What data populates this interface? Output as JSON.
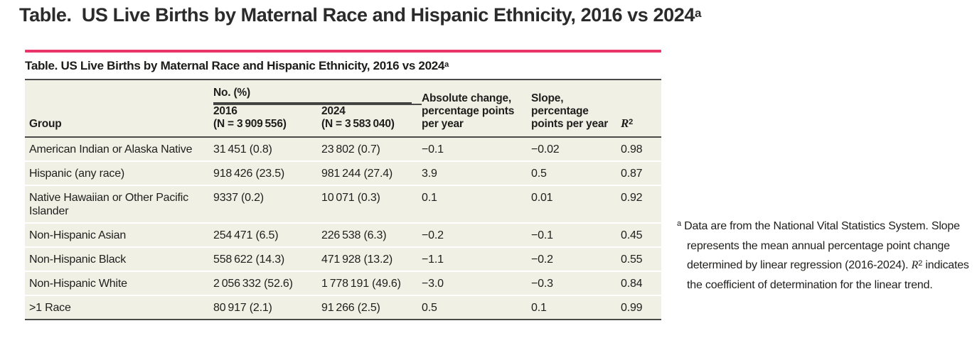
{
  "page_title": {
    "text": "Table.  US Live Births by Maternal Race and Hispanic Ethnicity, 2016 vs 2024",
    "sup": "a"
  },
  "panel": {
    "title": {
      "text": "Table. US Live Births by Maternal Race and Hispanic Ethnicity, 2016 vs 2024",
      "sup": "a"
    },
    "header": {
      "group": "Group",
      "no_pct": "No. (%)",
      "col2016": {
        "year": "2016",
        "n": "(N = 3 909 556)"
      },
      "col2024": {
        "year": "2024",
        "n": "(N = 3 583 040)"
      },
      "absolute_change": "Absolute change, percentage points per year",
      "slope": "Slope, percentage points per year",
      "r2": {
        "base": "R",
        "sup": "2"
      }
    },
    "rows": [
      {
        "group": "American Indian or Alaska Native",
        "y2016": "31 451 (0.8)",
        "y2024": "23 802 (0.7)",
        "abs": "−0.1",
        "slope": "−0.02",
        "r2": "0.98"
      },
      {
        "group": "Hispanic (any race)",
        "y2016": "918 426 (23.5)",
        "y2024": "981 244 (27.4)",
        "abs": "3.9",
        "slope": "0.5",
        "r2": "0.87"
      },
      {
        "group": "Native Hawaiian or Other Pacific Islander",
        "y2016": "9337 (0.2)",
        "y2024": "10 071 (0.3)",
        "abs": "0.1",
        "slope": "0.01",
        "r2": "0.92"
      },
      {
        "group": "Non-Hispanic Asian",
        "y2016": "254 471 (6.5)",
        "y2024": "226 538 (6.3)",
        "abs": "−0.2",
        "slope": "−0.1",
        "r2": "0.45"
      },
      {
        "group": "Non-Hispanic Black",
        "y2016": "558 622 (14.3)",
        "y2024": "471 928 (13.2)",
        "abs": "−1.1",
        "slope": "−0.2",
        "r2": "0.55"
      },
      {
        "group": "Non-Hispanic White",
        "y2016": "2 056 332 (52.6)",
        "y2024": "1 778 191 (49.6)",
        "abs": "−3.0",
        "slope": "−0.3",
        "r2": "0.84"
      },
      {
        "group": ">1 Race",
        "y2016": "80 917 (2.1)",
        "y2024": "91 266 (2.5)",
        "abs": "0.5",
        "slope": "0.1",
        "r2": "0.99"
      }
    ]
  },
  "footnote": {
    "marker": "a",
    "text_before": "Data are from the National Vital Statistics System. Slope represents the mean annual percentage point change determined by linear regression (2016-2024). ",
    "r2_base": "R",
    "r2_sup": "2",
    "text_after": " indicates the coefficient of determination for the linear trend."
  },
  "colors": {
    "accent_pink": "#ea356b",
    "rule_dark": "#4a4a48",
    "table_background": "#f1f0e5",
    "text": "#1f1e1c"
  }
}
